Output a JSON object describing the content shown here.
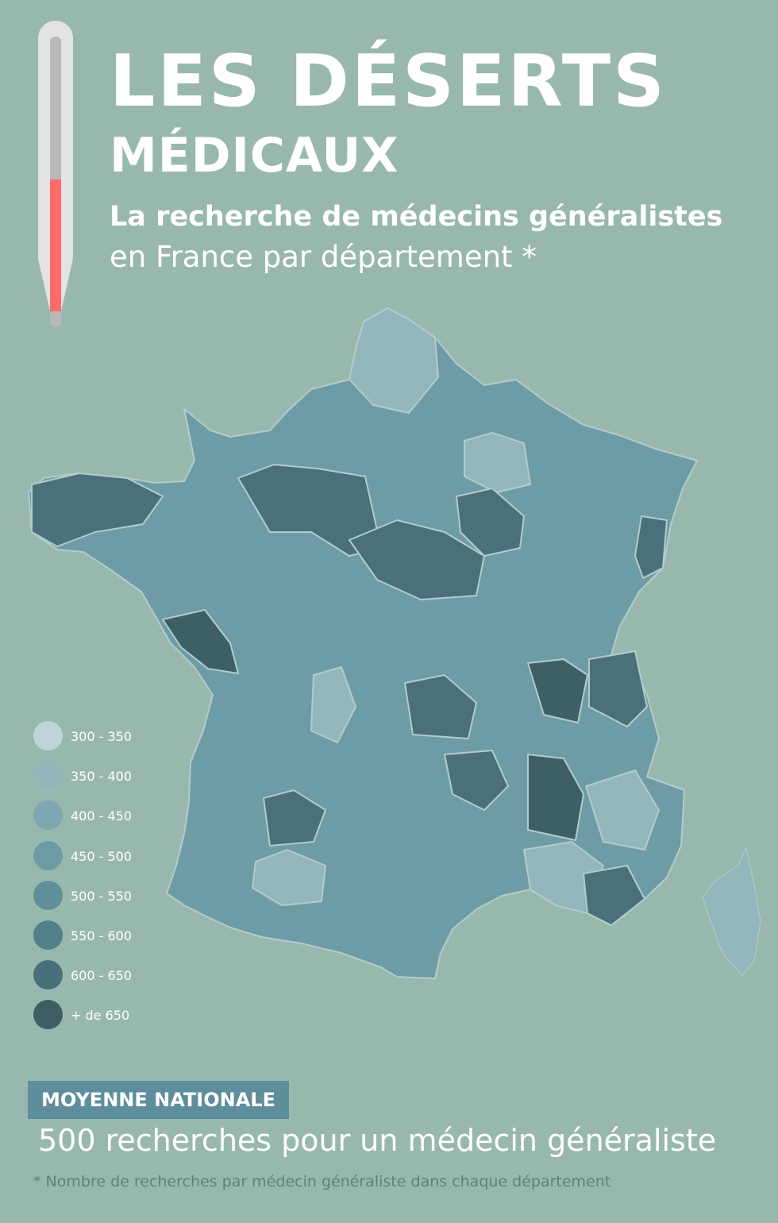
{
  "header": {
    "title": "LES DÉSERTS",
    "title_sub": "MÉDICAUX",
    "subtitle_bold": "La recherche de médecins généralistes",
    "subtitle": "en France par département *"
  },
  "thermometer": {
    "level": 0.48,
    "fill_color": "#fd6a6a"
  },
  "legend": {
    "items": [
      {
        "label": "300 - 350",
        "color": "#c0d4d5"
      },
      {
        "label": "350 - 400",
        "color": "#92b4ba"
      },
      {
        "label": "400 - 450",
        "color": "#7ea8b1"
      },
      {
        "label": "450 - 500",
        "color": "#6d9ca7"
      },
      {
        "label": "500 - 550",
        "color": "#5f8f9b"
      },
      {
        "label": "550 - 600",
        "color": "#527f8a"
      },
      {
        "label": "600 - 650",
        "color": "#48707a"
      },
      {
        "label": "+ de 650",
        "color": "#3f5e64"
      }
    ]
  },
  "map_colors": {
    "border": "#b4cbcb",
    "light": "#93b6bd",
    "mid": "#6d9ca7",
    "dark": "#4a717b",
    "darkest": "#3f5f66"
  },
  "national": {
    "badge": "MOYENNE NATIONALE",
    "text": "500 recherches pour un médecin généraliste"
  },
  "footnote": "* Nombre de recherches par médecin généraliste dans chaque département"
}
